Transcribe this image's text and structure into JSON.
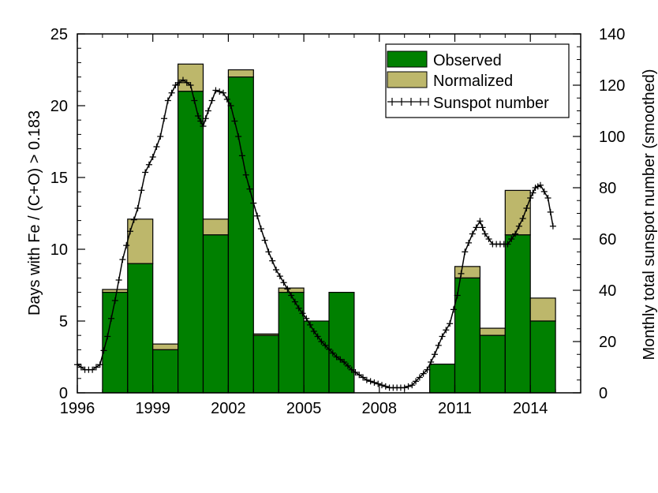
{
  "chart_data": {
    "type": "bar+line",
    "title": "",
    "xlabel": "",
    "ylabel_left": "Days with Fe / (C+O) > 0.183",
    "ylabel_right": "Monthly total sunspot number (smoothed)",
    "xlim": [
      1996,
      2016
    ],
    "ylim_left": [
      0,
      25
    ],
    "ylim_right": [
      0,
      140
    ],
    "x_ticks": [
      1996,
      1999,
      2002,
      2005,
      2008,
      2011,
      2014
    ],
    "y_ticks_left": [
      0,
      5,
      10,
      15,
      20,
      25
    ],
    "y_ticks_right": [
      0,
      20,
      40,
      60,
      80,
      100,
      120,
      140
    ],
    "legend": {
      "placement": "top-right",
      "entries": [
        "Observed",
        "Normalized",
        "Sunspot number"
      ]
    },
    "colors": {
      "observed": "#008000",
      "normalized": "#bdb76b",
      "line": "#000000"
    },
    "bars": {
      "bin_edges": [
        1997,
        1998,
        1999,
        2000,
        2001,
        2002,
        2003,
        2004,
        2005,
        2006,
        2007,
        2008,
        2009,
        2010,
        2011,
        2012,
        2013,
        2014,
        2015
      ],
      "observed": [
        7,
        9,
        3,
        21,
        11,
        22,
        4,
        7,
        5,
        7,
        0,
        0,
        0,
        2,
        8,
        4,
        11,
        5
      ],
      "normalized": [
        7.2,
        12.1,
        3.4,
        22.9,
        12.1,
        22.5,
        4.1,
        7.3,
        5.0,
        7.0,
        0,
        0,
        0,
        2.0,
        8.8,
        4.5,
        14.1,
        6.6
      ]
    },
    "sunspot_series": {
      "name": "Sunspot number",
      "x": [
        1996.0,
        1996.3,
        1996.6,
        1996.9,
        1997.2,
        1997.5,
        1997.8,
        1998.1,
        1998.4,
        1998.7,
        1999.0,
        1999.3,
        1999.6,
        1999.9,
        2000.2,
        2000.5,
        2000.8,
        2001.0,
        2001.2,
        2001.5,
        2001.8,
        2002.1,
        2002.4,
        2002.7,
        2003.0,
        2003.3,
        2003.6,
        2003.9,
        2004.2,
        2004.5,
        2004.8,
        2005.1,
        2005.4,
        2005.7,
        2006.0,
        2006.3,
        2006.6,
        2006.9,
        2007.2,
        2007.5,
        2007.8,
        2008.1,
        2008.4,
        2008.7,
        2009.0,
        2009.3,
        2009.6,
        2009.9,
        2010.2,
        2010.5,
        2010.8,
        2011.1,
        2011.4,
        2011.7,
        2012.0,
        2012.2,
        2012.5,
        2012.8,
        2013.1,
        2013.4,
        2013.7,
        2014.0,
        2014.2,
        2014.4,
        2014.7,
        2014.9
      ],
      "values": [
        11,
        9,
        9,
        11,
        22,
        36,
        52,
        63,
        72,
        86,
        92,
        100,
        114,
        120,
        122,
        120,
        108,
        104,
        110,
        118,
        117,
        112,
        100,
        85,
        74,
        64,
        55,
        48,
        43,
        38,
        33,
        29,
        24,
        20,
        17,
        14,
        12,
        9,
        7,
        5,
        4,
        3,
        2,
        2,
        2,
        3,
        6,
        9,
        15,
        22,
        27,
        38,
        55,
        62,
        67,
        62,
        58,
        58,
        58,
        62,
        68,
        76,
        80,
        81,
        76,
        65
      ]
    }
  }
}
